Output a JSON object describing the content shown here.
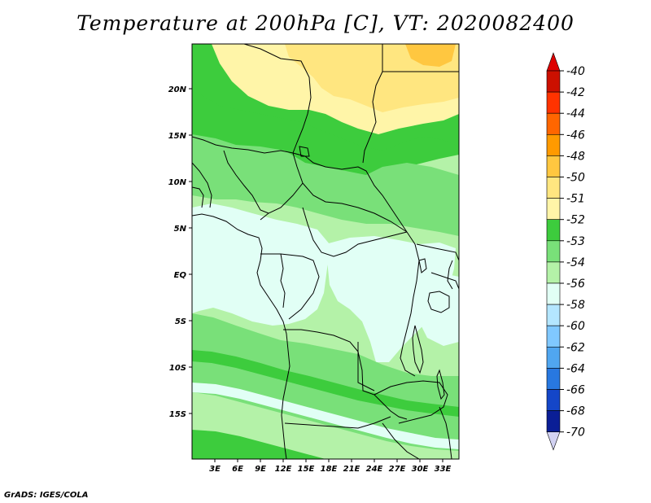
{
  "title": "Temperature at 200hPa [C], VT: 2020082400",
  "footer": "GrADS: IGES/COLA",
  "map": {
    "lat_ticks": [
      "20N",
      "15N",
      "10N",
      "5N",
      "EQ",
      "5S",
      "10S",
      "15S"
    ],
    "lon_ticks": [
      "3E",
      "6E",
      "9E",
      "12E",
      "15E",
      "18E",
      "21E",
      "24E",
      "27E",
      "30E",
      "33E"
    ],
    "colors": {
      "c51": "#fff5a8",
      "c50": "#ffe680",
      "c48": "#ffc740",
      "c52": "#3dcc3d",
      "c53": "#79e079",
      "c54": "#b4f2a8",
      "c56": "#e1fff5"
    }
  },
  "colorbar": {
    "levels": [
      {
        "label": "-40",
        "color": "#cc1000"
      },
      {
        "label": "-42",
        "color": "#ff3300"
      },
      {
        "label": "-44",
        "color": "#ff6600"
      },
      {
        "label": "-46",
        "color": "#ff9a00"
      },
      {
        "label": "-48",
        "color": "#ffc740"
      },
      {
        "label": "-50",
        "color": "#ffe680"
      },
      {
        "label": "-51",
        "color": "#fff5a8"
      },
      {
        "label": "-52",
        "color": "#3dcc3d"
      },
      {
        "label": "-53",
        "color": "#79e079"
      },
      {
        "label": "-54",
        "color": "#b4f2a8"
      },
      {
        "label": "-56",
        "color": "#e1fff5"
      },
      {
        "label": "-58",
        "color": "#b4e6ff"
      },
      {
        "label": "-60",
        "color": "#80c8ff"
      },
      {
        "label": "-62",
        "color": "#50a6f0"
      },
      {
        "label": "-64",
        "color": "#2878e0"
      },
      {
        "label": "-66",
        "color": "#1446c8"
      },
      {
        "label": "-68",
        "color": "#0a1e96"
      },
      {
        "label": "-70",
        "color": "#000a64"
      }
    ],
    "top_cap_color": "#dd0000",
    "bottom_cap_color": "#d2d2f2"
  }
}
